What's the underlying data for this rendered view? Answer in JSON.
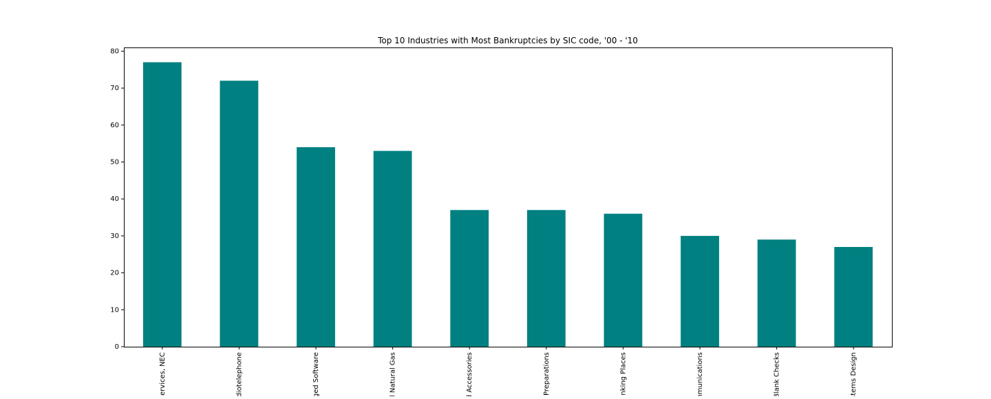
{
  "chart_data": {
    "type": "bar",
    "title": "Top 10 Industries with Most Bankruptcies by SIC code, '00 - '10",
    "xlabel": "",
    "ylabel": "",
    "categories": [
      "ervices, NEC",
      "diotelephone",
      "ged Software",
      "l Natural Gas",
      "d Accessories",
      "Preparations",
      "nking Places",
      "nmunications",
      "Blank Checks",
      "stems Design"
    ],
    "values": [
      77,
      72,
      54,
      53,
      37,
      37,
      36,
      30,
      29,
      27
    ],
    "ylim": [
      0,
      81
    ],
    "yticks": [
      0,
      10,
      20,
      30,
      40,
      50,
      60,
      70,
      80
    ],
    "bar_color": "#008080",
    "grid": false,
    "legend": "none"
  }
}
